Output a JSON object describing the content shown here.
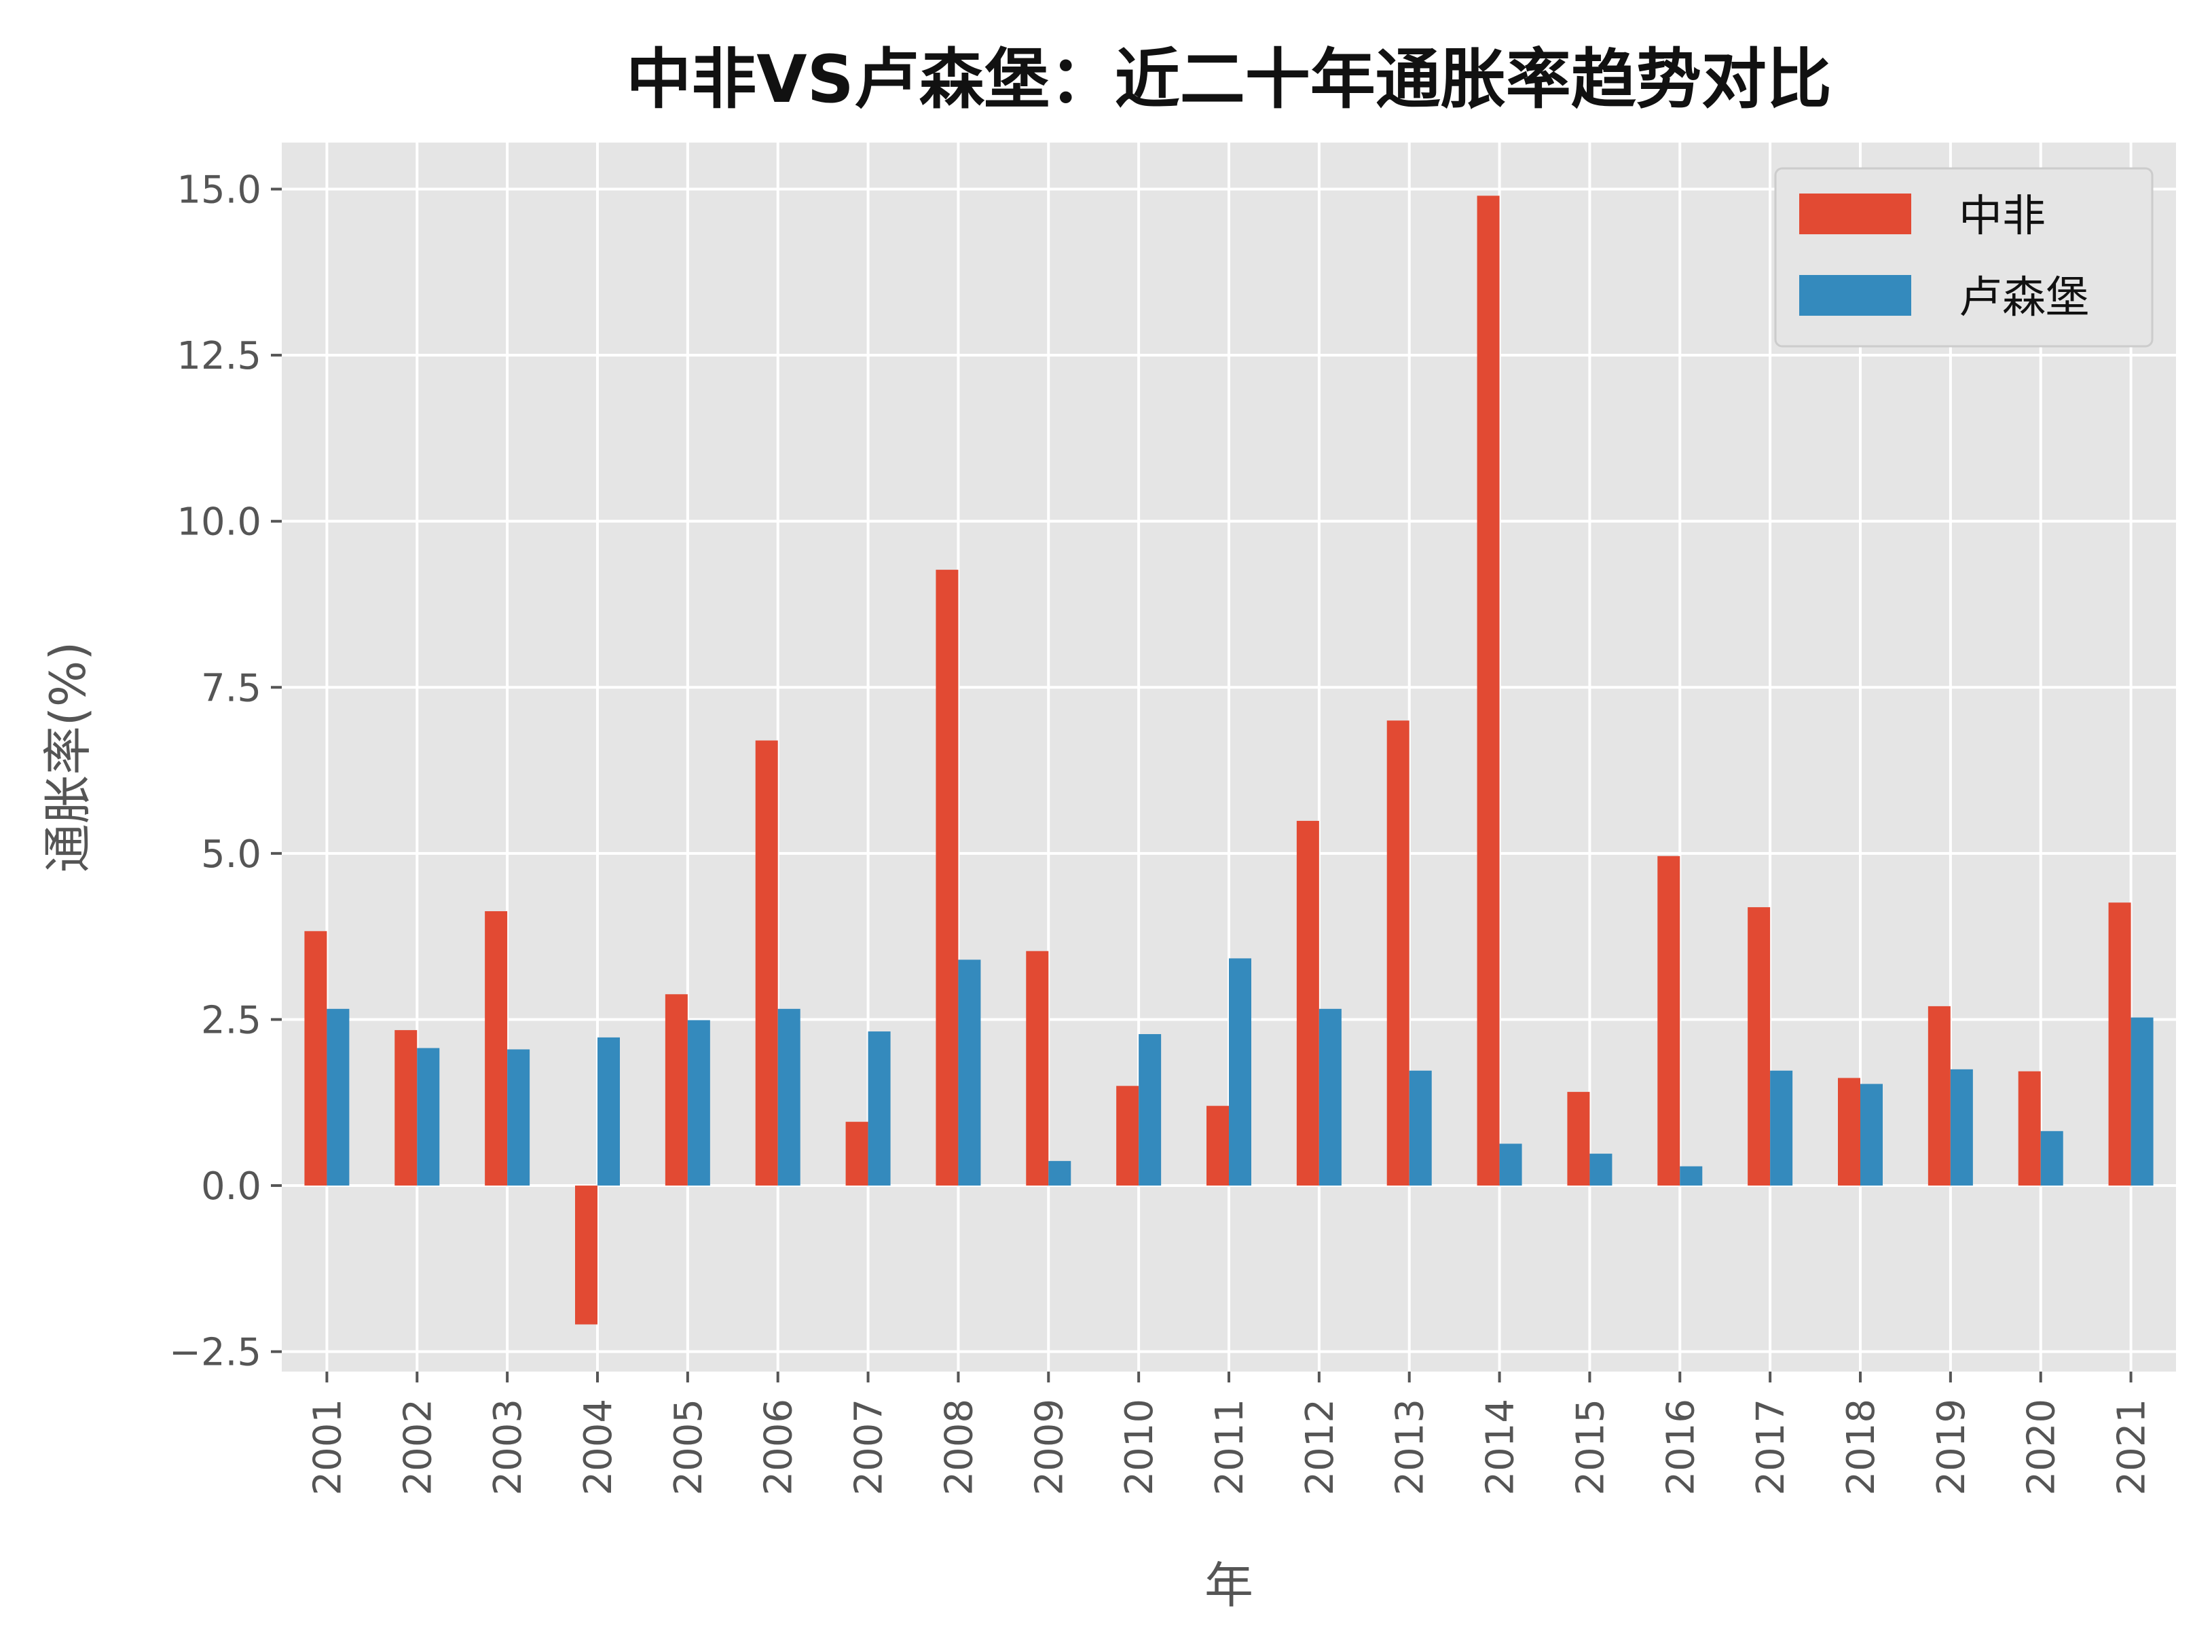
{
  "chart_data": {
    "type": "bar",
    "title": "中非VS卢森堡：近二十年通胀率趋势对比",
    "xlabel": "年",
    "ylabel": "通胀率(%)",
    "categories": [
      "2001",
      "2002",
      "2003",
      "2004",
      "2005",
      "2006",
      "2007",
      "2008",
      "2009",
      "2010",
      "2011",
      "2012",
      "2013",
      "2014",
      "2015",
      "2016",
      "2017",
      "2018",
      "2019",
      "2020",
      "2021"
    ],
    "series": [
      {
        "name": "中非",
        "color": "#E24A33",
        "values": [
          3.83,
          2.34,
          4.13,
          -2.09,
          2.88,
          6.7,
          0.96,
          9.27,
          3.53,
          1.5,
          1.2,
          5.49,
          7.0,
          14.9,
          1.41,
          4.96,
          4.19,
          1.62,
          2.7,
          1.72,
          4.26
        ]
      },
      {
        "name": "卢森堡",
        "color": "#348ABD",
        "values": [
          2.66,
          2.07,
          2.05,
          2.23,
          2.49,
          2.66,
          2.32,
          3.4,
          0.37,
          2.28,
          3.42,
          2.66,
          1.73,
          0.63,
          0.48,
          0.29,
          1.73,
          1.53,
          1.75,
          0.82,
          2.53
        ]
      }
    ],
    "yticks": [
      -2.5,
      0.0,
      2.5,
      5.0,
      7.5,
      10.0,
      12.5,
      15.0
    ],
    "ytick_labels": [
      "−2.5",
      "0.0",
      "2.5",
      "5.0",
      "7.5",
      "10.0",
      "12.5",
      "15.0"
    ],
    "ylim": [
      -2.8,
      15.7
    ],
    "grid": true,
    "legend_position": "top-right",
    "style": {
      "plot_background": "#E5E5E5",
      "grid_color": "#FFFFFF"
    }
  }
}
